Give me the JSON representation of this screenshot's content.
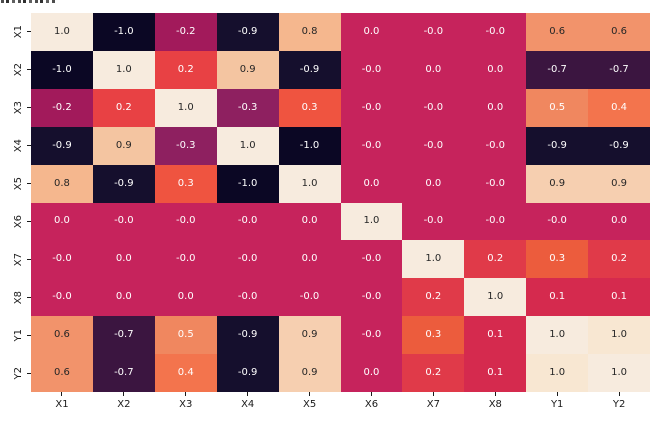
{
  "figure": {
    "background": "#ffffff",
    "axis_text_color": "#1a1a1a"
  },
  "chart_data": {
    "type": "heatmap",
    "title": "",
    "xlabel": "",
    "ylabel": "",
    "colormap": "rocket",
    "value_range": [
      -1.0,
      1.0
    ],
    "colorbar": false,
    "grid": false,
    "x_categories": [
      "X1",
      "X2",
      "X3",
      "X4",
      "X5",
      "X6",
      "X7",
      "X8",
      "Y1",
      "Y2"
    ],
    "y_categories": [
      "X1",
      "X2",
      "X3",
      "X4",
      "X5",
      "X6",
      "X7",
      "X8",
      "Y1",
      "Y2"
    ],
    "cell_labels": [
      [
        "1.0",
        "-1.0",
        "-0.2",
        "-0.9",
        "0.8",
        "0.0",
        "-0.0",
        "-0.0",
        "0.6",
        "0.6"
      ],
      [
        "-1.0",
        "1.0",
        "0.2",
        "0.9",
        "-0.9",
        "-0.0",
        "0.0",
        "0.0",
        "-0.7",
        "-0.7"
      ],
      [
        "-0.2",
        "0.2",
        "1.0",
        "-0.3",
        "0.3",
        "-0.0",
        "-0.0",
        "0.0",
        "0.5",
        "0.4"
      ],
      [
        "-0.9",
        "0.9",
        "-0.3",
        "1.0",
        "-1.0",
        "-0.0",
        "-0.0",
        "-0.0",
        "-0.9",
        "-0.9"
      ],
      [
        "0.8",
        "-0.9",
        "0.3",
        "-1.0",
        "1.0",
        "0.0",
        "0.0",
        "-0.0",
        "0.9",
        "0.9"
      ],
      [
        "0.0",
        "-0.0",
        "-0.0",
        "-0.0",
        "0.0",
        "1.0",
        "-0.0",
        "-0.0",
        "-0.0",
        "0.0"
      ],
      [
        "-0.0",
        "0.0",
        "-0.0",
        "-0.0",
        "0.0",
        "-0.0",
        "1.0",
        "0.2",
        "0.3",
        "0.2"
      ],
      [
        "-0.0",
        "0.0",
        "0.0",
        "-0.0",
        "-0.0",
        "-0.0",
        "0.2",
        "1.0",
        "0.1",
        "0.1"
      ],
      [
        "0.6",
        "-0.7",
        "0.5",
        "-0.9",
        "0.9",
        "-0.0",
        "0.3",
        "0.1",
        "1.0",
        "1.0"
      ],
      [
        "0.6",
        "-0.7",
        "0.4",
        "-0.9",
        "0.9",
        "0.0",
        "0.2",
        "0.1",
        "1.0",
        "1.0"
      ]
    ],
    "palette": [
      "#f7ebde",
      "#0b0724",
      "#a21a5b",
      "#150f2d",
      "#f5b78e",
      "#c6235c",
      "#e84144",
      "#f4c5a1",
      "#ef5440",
      "#f2936b",
      "#3b1540",
      "#f0875f",
      "#f3744d",
      "#d52a4e",
      "#f8e7d2",
      "#e03a49",
      "#8e2060",
      "#f6cfb0",
      "#ec5c3d"
    ],
    "palette_text_colors": [
      "#262626",
      "#ffffff",
      "#ffffff",
      "#ffffff",
      "#262626",
      "#ffffff",
      "#ffffff",
      "#262626",
      "#ffffff",
      "#262626",
      "#ffffff",
      "#ffffff",
      "#ffffff",
      "#ffffff",
      "#262626",
      "#ffffff",
      "#ffffff",
      "#262626",
      "#ffffff"
    ],
    "cell_color_index": [
      [
        0,
        1,
        2,
        3,
        4,
        5,
        5,
        5,
        9,
        9
      ],
      [
        1,
        0,
        6,
        7,
        3,
        5,
        5,
        5,
        10,
        10
      ],
      [
        2,
        6,
        0,
        16,
        8,
        5,
        5,
        5,
        11,
        12
      ],
      [
        3,
        7,
        16,
        0,
        1,
        5,
        5,
        5,
        3,
        3
      ],
      [
        4,
        3,
        8,
        1,
        0,
        5,
        5,
        5,
        17,
        17
      ],
      [
        5,
        5,
        5,
        5,
        5,
        0,
        5,
        5,
        5,
        5
      ],
      [
        5,
        5,
        5,
        5,
        5,
        5,
        0,
        15,
        18,
        15
      ],
      [
        5,
        5,
        5,
        5,
        5,
        5,
        15,
        0,
        13,
        13
      ],
      [
        9,
        10,
        11,
        3,
        17,
        5,
        18,
        13,
        0,
        14
      ],
      [
        9,
        10,
        12,
        3,
        17,
        5,
        15,
        13,
        14,
        0
      ]
    ]
  }
}
